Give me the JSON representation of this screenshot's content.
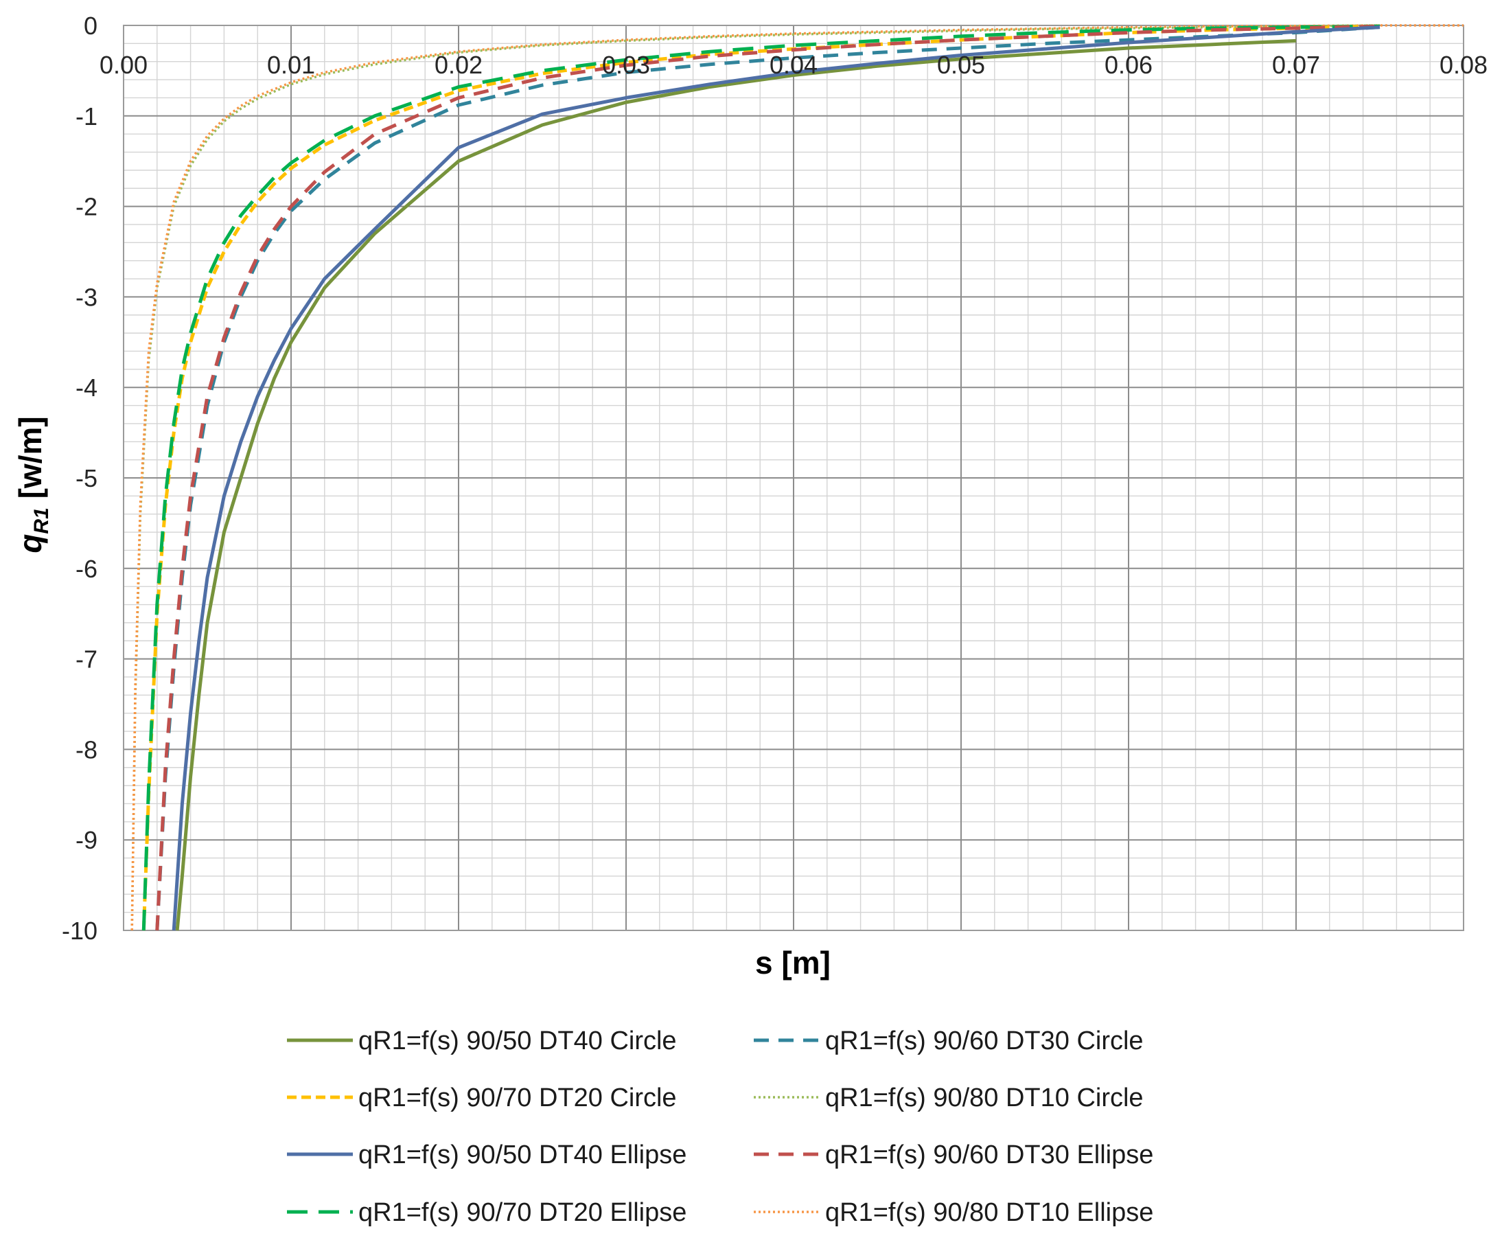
{
  "chart_data": {
    "type": "line",
    "title": "",
    "xlabel": "s [m]",
    "ylabel_main": "q",
    "ylabel_sub": "R1",
    "ylabel_unit": " [w/m]",
    "xlim": [
      0,
      0.08
    ],
    "ylim": [
      -10,
      0
    ],
    "x_ticks": [
      "0.00",
      "0.01",
      "0.02",
      "0.03",
      "0.04",
      "0.05",
      "0.06",
      "0.07",
      "0.08"
    ],
    "y_ticks": [
      "0",
      "-1",
      "-2",
      "-3",
      "-4",
      "-5",
      "-6",
      "-7",
      "-8",
      "-9",
      "-10"
    ],
    "x_axis_position": "top (at y=0)",
    "grid": true,
    "legend_position": "bottom",
    "series": [
      {
        "name": "qR1=f(s) 90/50 DT40 Circle",
        "color": "#77933C",
        "style": "solid",
        "x": [
          0.0032,
          0.0035,
          0.004,
          0.0045,
          0.005,
          0.006,
          0.007,
          0.008,
          0.009,
          0.01,
          0.012,
          0.015,
          0.02,
          0.025,
          0.03,
          0.035,
          0.04,
          0.045,
          0.05,
          0.055,
          0.06,
          0.065,
          0.07
        ],
        "y": [
          -10,
          -9.4,
          -8.3,
          -7.4,
          -6.6,
          -5.6,
          -5.0,
          -4.4,
          -3.9,
          -3.5,
          -2.9,
          -2.3,
          -1.5,
          -1.1,
          -0.85,
          -0.68,
          -0.55,
          -0.45,
          -0.37,
          -0.31,
          -0.25,
          -0.21,
          -0.17
        ]
      },
      {
        "name": "qR1=f(s) 90/60 DT30 Circle",
        "color": "#31849B",
        "style": "dash",
        "x": [
          0.002,
          0.0025,
          0.003,
          0.0035,
          0.004,
          0.005,
          0.006,
          0.007,
          0.008,
          0.009,
          0.01,
          0.012,
          0.015,
          0.02,
          0.025,
          0.03,
          0.035,
          0.04,
          0.045,
          0.05,
          0.055,
          0.06,
          0.065,
          0.07,
          0.075
        ],
        "y": [
          -10,
          -8.3,
          -7.1,
          -6.1,
          -5.3,
          -4.2,
          -3.5,
          -3.0,
          -2.6,
          -2.3,
          -2.05,
          -1.7,
          -1.3,
          -0.88,
          -0.66,
          -0.52,
          -0.43,
          -0.36,
          -0.3,
          -0.25,
          -0.2,
          -0.16,
          -0.12,
          -0.08,
          -0.02
        ]
      },
      {
        "name": "qR1=f(s) 90/70 DT20 Circle",
        "color": "#FFC000",
        "style": "shortdash",
        "x": [
          0.0012,
          0.0015,
          0.002,
          0.0025,
          0.003,
          0.0035,
          0.004,
          0.005,
          0.006,
          0.007,
          0.008,
          0.009,
          0.01,
          0.012,
          0.015,
          0.02,
          0.025,
          0.03,
          0.035,
          0.04,
          0.045,
          0.05,
          0.055,
          0.06,
          0.065,
          0.07,
          0.075
        ],
        "y": [
          -10,
          -8.5,
          -6.5,
          -5.3,
          -4.5,
          -3.9,
          -3.5,
          -2.9,
          -2.5,
          -2.2,
          -1.95,
          -1.75,
          -1.58,
          -1.32,
          -1.05,
          -0.72,
          -0.53,
          -0.41,
          -0.32,
          -0.26,
          -0.21,
          -0.16,
          -0.12,
          -0.08,
          -0.05,
          -0.03,
          -0.01
        ]
      },
      {
        "name": "qR1=f(s) 90/80 DT10 Circle",
        "color": "#9BBB59",
        "style": "dot",
        "x": [
          0.0005,
          0.0007,
          0.001,
          0.0015,
          0.002,
          0.003,
          0.004,
          0.005,
          0.006,
          0.007,
          0.008,
          0.01,
          0.012,
          0.015,
          0.02,
          0.025,
          0.03,
          0.035,
          0.04,
          0.045,
          0.05,
          0.055,
          0.06,
          0.065,
          0.07,
          0.075
        ],
        "y": [
          -10,
          -7.4,
          -5.4,
          -3.7,
          -2.9,
          -2.0,
          -1.55,
          -1.26,
          -1.06,
          -0.92,
          -0.81,
          -0.65,
          -0.54,
          -0.43,
          -0.3,
          -0.22,
          -0.17,
          -0.13,
          -0.1,
          -0.08,
          -0.06,
          -0.04,
          -0.03,
          -0.02,
          -0.01,
          0
        ]
      },
      {
        "name": "qR1=f(s) 90/50 DT40 Ellipse",
        "color": "#4F6FA6",
        "style": "solid",
        "x": [
          0.003,
          0.0035,
          0.004,
          0.0045,
          0.005,
          0.006,
          0.007,
          0.008,
          0.009,
          0.01,
          0.012,
          0.015,
          0.02,
          0.025,
          0.03,
          0.035,
          0.04,
          0.045,
          0.05,
          0.055,
          0.06,
          0.065,
          0.07,
          0.075
        ],
        "y": [
          -10,
          -8.6,
          -7.6,
          -6.8,
          -6.1,
          -5.2,
          -4.6,
          -4.1,
          -3.7,
          -3.35,
          -2.8,
          -2.25,
          -1.35,
          -0.98,
          -0.8,
          -0.65,
          -0.52,
          -0.42,
          -0.33,
          -0.26,
          -0.19,
          -0.13,
          -0.07,
          -0.02
        ]
      },
      {
        "name": "qR1=f(s) 90/60 DT30 Ellipse",
        "color": "#C0504D",
        "style": "dash",
        "x": [
          0.002,
          0.0025,
          0.003,
          0.0035,
          0.004,
          0.005,
          0.006,
          0.007,
          0.008,
          0.009,
          0.01,
          0.012,
          0.015,
          0.02,
          0.025,
          0.03,
          0.035,
          0.04,
          0.045,
          0.05,
          0.055,
          0.06,
          0.065,
          0.07,
          0.075
        ],
        "y": [
          -10,
          -8.2,
          -7.0,
          -6.0,
          -5.2,
          -4.1,
          -3.45,
          -2.95,
          -2.55,
          -2.25,
          -2.0,
          -1.62,
          -1.2,
          -0.8,
          -0.58,
          -0.44,
          -0.34,
          -0.27,
          -0.21,
          -0.16,
          -0.12,
          -0.08,
          -0.05,
          -0.03,
          -0.01
        ]
      },
      {
        "name": "qR1=f(s) 90/70 DT20 Ellipse",
        "color": "#00B050",
        "style": "longdash",
        "x": [
          0.0012,
          0.0015,
          0.002,
          0.0025,
          0.003,
          0.0035,
          0.004,
          0.005,
          0.006,
          0.007,
          0.008,
          0.009,
          0.01,
          0.012,
          0.015,
          0.02,
          0.025,
          0.03,
          0.035,
          0.04,
          0.045,
          0.05,
          0.055,
          0.06,
          0.065,
          0.07,
          0.075
        ],
        "y": [
          -10,
          -8.4,
          -6.4,
          -5.2,
          -4.4,
          -3.8,
          -3.4,
          -2.8,
          -2.4,
          -2.1,
          -1.88,
          -1.68,
          -1.52,
          -1.27,
          -1.0,
          -0.68,
          -0.5,
          -0.38,
          -0.29,
          -0.22,
          -0.17,
          -0.12,
          -0.08,
          -0.05,
          -0.03,
          -0.02,
          -0.01
        ]
      },
      {
        "name": "qR1=f(s) 90/80 DT10 Ellipse",
        "color": "#F79646",
        "style": "dot",
        "x": [
          0.0005,
          0.0007,
          0.001,
          0.0015,
          0.002,
          0.003,
          0.004,
          0.005,
          0.006,
          0.007,
          0.008,
          0.01,
          0.012,
          0.015,
          0.02,
          0.025,
          0.03,
          0.035,
          0.04,
          0.045,
          0.05,
          0.055,
          0.06,
          0.065,
          0.07,
          0.075,
          0.08
        ],
        "y": [
          -10,
          -7.3,
          -5.3,
          -3.6,
          -2.85,
          -1.95,
          -1.5,
          -1.22,
          -1.03,
          -0.89,
          -0.78,
          -0.63,
          -0.52,
          -0.41,
          -0.29,
          -0.21,
          -0.16,
          -0.12,
          -0.09,
          -0.07,
          -0.05,
          -0.035,
          -0.02,
          -0.01,
          -0.005,
          0,
          0
        ]
      }
    ]
  }
}
